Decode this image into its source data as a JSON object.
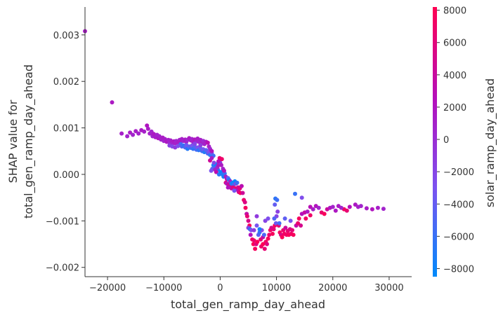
{
  "chart_data": {
    "type": "scatter",
    "xlabel": "total_gen_ramp_day_ahead",
    "ylabel_line1": "SHAP value for",
    "ylabel_line2": "total_gen_ramp_day_ahead",
    "colorbar_label": "solar_ramp_day_ahead",
    "xlim": [
      -24000,
      34000
    ],
    "ylim": [
      -0.0022,
      0.0036
    ],
    "color_range": [
      -8500,
      8200
    ],
    "x_ticks": [
      -20000,
      -10000,
      0,
      10000,
      20000,
      30000
    ],
    "x_tick_labels": [
      "−20000",
      "−10000",
      "0",
      "10000",
      "20000",
      "30000"
    ],
    "y_ticks": [
      0.003,
      0.002,
      0.001,
      0.0,
      -0.001,
      -0.002
    ],
    "y_tick_labels": [
      "0.003",
      "0.002",
      "0.001",
      "0.000",
      "−0.001",
      "−0.002"
    ],
    "colorbar_ticks": [
      8000,
      6000,
      4000,
      2000,
      0,
      -2000,
      -4000,
      -6000,
      -8000
    ],
    "colorbar_tick_labels": [
      "8000",
      "6000",
      "4000",
      "2000",
      "0",
      "−2000",
      "−4000",
      "−6000",
      "−8000"
    ],
    "colormap": [
      "#008afb",
      "#7c52f0",
      "#b40fbb",
      "#ff0052"
    ],
    "points": [
      [
        -24000,
        0.00308,
        1500
      ],
      [
        -19200,
        0.00155,
        1800
      ],
      [
        -17500,
        0.00088,
        1200
      ],
      [
        -16500,
        0.00082,
        900
      ],
      [
        -16000,
        0.0009,
        1500
      ],
      [
        -15500,
        0.00085,
        800
      ],
      [
        -15000,
        0.00093,
        1400
      ],
      [
        -14500,
        0.00088,
        1100
      ],
      [
        -14000,
        0.00095,
        1600
      ],
      [
        -13500,
        0.00092,
        1300
      ],
      [
        -13000,
        0.00105,
        2200
      ],
      [
        -12800,
        0.00098,
        1500
      ],
      [
        -12500,
        0.00088,
        1200
      ],
      [
        -12200,
        0.00092,
        900
      ],
      [
        -12000,
        0.00082,
        600
      ],
      [
        -11800,
        0.00087,
        1800
      ],
      [
        -11500,
        0.0008,
        1400
      ],
      [
        -11200,
        0.00085,
        800
      ],
      [
        -11000,
        0.00078,
        2000
      ],
      [
        -10800,
        0.00082,
        1200
      ],
      [
        -10500,
        0.00075,
        1000
      ],
      [
        -10200,
        0.00079,
        1500
      ],
      [
        -10000,
        0.00072,
        700
      ],
      [
        -9800,
        0.00076,
        1300
      ],
      [
        -9500,
        0.0007,
        1900
      ],
      [
        -9200,
        0.00074,
        1100
      ],
      [
        -9000,
        0.00068,
        500
      ],
      [
        -8800,
        0.00073,
        1400
      ],
      [
        -8500,
        0.00066,
        900
      ],
      [
        -8200,
        0.00071,
        1700
      ],
      [
        -8000,
        0.00067,
        1200
      ],
      [
        -7800,
        0.00072,
        600
      ],
      [
        -7500,
        0.00069,
        1500
      ],
      [
        -7200,
        0.00074,
        1000
      ],
      [
        -7000,
        0.0007,
        1800
      ],
      [
        -6800,
        0.00076,
        1300
      ],
      [
        -6500,
        0.00072,
        800
      ],
      [
        -6200,
        0.00075,
        1600
      ],
      [
        -6000,
        0.0007,
        1100
      ],
      [
        -5800,
        0.00074,
        400
      ],
      [
        -5500,
        0.00078,
        1700
      ],
      [
        -5200,
        0.00073,
        1200
      ],
      [
        -5000,
        0.00076,
        900
      ],
      [
        -4800,
        0.0007,
        1400
      ],
      [
        -4500,
        0.00075,
        2100
      ],
      [
        -4200,
        0.00072,
        1000
      ],
      [
        -4000,
        0.00077,
        1500
      ],
      [
        -3800,
        0.0007,
        700
      ],
      [
        -3500,
        0.00074,
        1300
      ],
      [
        -3200,
        0.00068,
        1800
      ],
      [
        -3000,
        0.00072,
        500
      ],
      [
        -2800,
        0.00065,
        1100
      ],
      [
        -2500,
        0.0007,
        1600
      ],
      [
        -7000,
        0.00065,
        -5500
      ],
      [
        -6800,
        0.0006,
        -4800
      ],
      [
        -6500,
        0.00062,
        -6200
      ],
      [
        -6200,
        0.00058,
        -5000
      ],
      [
        -6000,
        0.00063,
        -3500
      ],
      [
        -5800,
        0.00055,
        -6800
      ],
      [
        -5500,
        0.0006,
        -4200
      ],
      [
        -5200,
        0.00057,
        -5600
      ],
      [
        -5000,
        0.00062,
        -3000
      ],
      [
        -4800,
        0.00055,
        -6100
      ],
      [
        -4500,
        0.0006,
        -4600
      ],
      [
        -4200,
        0.00053,
        -5300
      ],
      [
        -4000,
        0.00058,
        -2800
      ],
      [
        -3800,
        0.00052,
        -6500
      ],
      [
        -3500,
        0.00056,
        -4000
      ],
      [
        -3200,
        0.0005,
        -5700
      ],
      [
        -3000,
        0.00054,
        -3300
      ],
      [
        -2800,
        0.00048,
        -6900
      ],
      [
        -2500,
        0.00052,
        -4400
      ],
      [
        -2200,
        0.00045,
        -5100
      ],
      [
        -2000,
        0.00048,
        -2600
      ],
      [
        -1800,
        0.00042,
        -6300
      ],
      [
        -1500,
        0.00046,
        -3800
      ],
      [
        -1200,
        0.0004,
        -5500
      ],
      [
        -9000,
        0.00062,
        -1500
      ],
      [
        -8500,
        0.0006,
        -2200
      ],
      [
        -8000,
        0.00058,
        -1000
      ],
      [
        -7500,
        0.00061,
        -2500
      ],
      [
        -4500,
        0.00066,
        -1800
      ],
      [
        -3500,
        0.00063,
        -900
      ],
      [
        -2000,
        0.0006,
        1200
      ],
      [
        -1800,
        0.00055,
        600
      ],
      [
        -1500,
        0.0005,
        2400
      ],
      [
        -2200,
        0.00068,
        3000
      ],
      [
        -1800,
        0.0003,
        4500
      ],
      [
        -1500,
        0.00035,
        1500
      ],
      [
        -1200,
        0.0002,
        -7500
      ],
      [
        -1000,
        0.00018,
        -6000
      ],
      [
        -800,
        0.00022,
        -7800
      ],
      [
        -600,
        0.00015,
        -5200
      ],
      [
        -400,
        0.0001,
        -7000
      ],
      [
        -1400,
        0.00012,
        -4500
      ],
      [
        -1100,
        0.00025,
        -2000
      ],
      [
        -900,
        0.0001,
        1000
      ],
      [
        -700,
        5e-05,
        3200
      ],
      [
        -500,
        0.00015,
        800
      ],
      [
        -300,
        0.0002,
        2000
      ],
      [
        -100,
        0.0003,
        5200
      ],
      [
        0,
        0.00025,
        -1200
      ],
      [
        200,
        0.0002,
        1800
      ],
      [
        -200,
        0.0,
        -6500
      ],
      [
        -1600,
        8e-05,
        -3000
      ],
      [
        -100,
        0.00035,
        6500
      ],
      [
        300,
        0.00033,
        7000
      ],
      [
        100,
        5e-05,
        -8000
      ],
      [
        400,
        0.0,
        -6800
      ],
      [
        600,
        -5e-05,
        -7500
      ],
      [
        800,
        2e-05,
        -5900
      ],
      [
        -300,
        0.00028,
        2600
      ],
      [
        500,
        0.00012,
        900
      ],
      [
        700,
        8e-05,
        2300
      ],
      [
        1000,
        -5e-05,
        1500
      ],
      [
        1200,
        -0.0001,
        3500
      ],
      [
        1400,
        -8e-05,
        -4200
      ],
      [
        1600,
        -0.00012,
        -7200
      ],
      [
        1800,
        -0.00015,
        900
      ],
      [
        1000,
        -0.00018,
        5400
      ],
      [
        1200,
        -0.0002,
        2100
      ],
      [
        1500,
        -0.00022,
        4200
      ],
      [
        1800,
        -0.00025,
        6100
      ],
      [
        2000,
        -0.0002,
        -6500
      ],
      [
        2200,
        -0.00018,
        -7800
      ],
      [
        2400,
        -0.00022,
        -5500
      ],
      [
        2600,
        -0.00015,
        -8200
      ],
      [
        2000,
        -0.0003,
        3600
      ],
      [
        2300,
        -0.00028,
        5800
      ],
      [
        2600,
        -0.00032,
        1700
      ],
      [
        2800,
        -0.0003,
        7200
      ],
      [
        3000,
        -0.00033,
        2900
      ],
      [
        3200,
        -0.00028,
        4800
      ],
      [
        2500,
        -0.00035,
        -3200
      ],
      [
        2800,
        -0.0002,
        -1500
      ],
      [
        3500,
        -0.0003,
        6200
      ],
      [
        3800,
        -0.00025,
        3100
      ],
      [
        3300,
        -0.00038,
        5000
      ],
      [
        3000,
        -0.00018,
        -6000
      ],
      [
        1400,
        -0.00028,
        2400
      ],
      [
        3600,
        -0.0004,
        7800
      ],
      [
        4000,
        -0.0004,
        4500
      ],
      [
        4200,
        -0.00055,
        6800
      ],
      [
        4400,
        -0.0006,
        5600
      ],
      [
        4500,
        -0.00072,
        7500
      ],
      [
        4700,
        -0.00085,
        3800
      ],
      [
        4800,
        -0.0009,
        6500
      ],
      [
        5000,
        -0.001,
        5200
      ],
      [
        5200,
        -0.0011,
        7800
      ],
      [
        5000,
        -0.00115,
        -1500
      ],
      [
        5300,
        -0.00118,
        -6800
      ],
      [
        5500,
        -0.0012,
        -2500
      ],
      [
        5700,
        -0.0014,
        7200
      ],
      [
        5900,
        -0.0015,
        8000
      ],
      [
        5400,
        -0.0013,
        2400
      ],
      [
        6000,
        -0.00142,
        6800
      ],
      [
        6200,
        -0.0016,
        7600
      ],
      [
        6400,
        -0.0015,
        5500
      ],
      [
        6600,
        -0.00145,
        7900
      ],
      [
        6800,
        -0.0013,
        -4500
      ],
      [
        7000,
        -0.00125,
        -6000
      ],
      [
        7200,
        -0.0014,
        6500
      ],
      [
        7400,
        -0.0012,
        -2200
      ],
      [
        7600,
        -0.00135,
        3900
      ],
      [
        7800,
        -0.0013,
        -5000
      ],
      [
        6000,
        -0.0012,
        -1000
      ],
      [
        6500,
        -0.0011,
        -3000
      ],
      [
        7000,
        -0.00118,
        -7600
      ],
      [
        7300,
        -0.00155,
        7000
      ],
      [
        7600,
        -0.0015,
        8000
      ],
      [
        7900,
        -0.0016,
        6400
      ],
      [
        8100,
        -0.00145,
        7400
      ],
      [
        8300,
        -0.0015,
        5800
      ],
      [
        8500,
        -0.00138,
        7800
      ],
      [
        8700,
        -0.0013,
        6900
      ],
      [
        8900,
        -0.0012,
        7300
      ],
      [
        9100,
        -0.00115,
        5100
      ],
      [
        9300,
        -0.00128,
        7700
      ],
      [
        9500,
        -0.00118,
        6200
      ],
      [
        9700,
        -0.0011,
        7500
      ],
      [
        9900,
        -0.00105,
        -3500
      ],
      [
        10000,
        -0.0009,
        -2000
      ],
      [
        9600,
        -0.00095,
        -4800
      ],
      [
        9800,
        -0.00052,
        -6500
      ],
      [
        10100,
        -0.00055,
        -5800
      ],
      [
        9700,
        -0.00065,
        -4000
      ],
      [
        10200,
        -0.0008,
        -1500
      ],
      [
        10400,
        -0.0011,
        6400
      ],
      [
        10600,
        -0.00125,
        7600
      ],
      [
        10800,
        -0.0013,
        5600
      ],
      [
        11000,
        -0.00135,
        7900
      ],
      [
        11200,
        -0.0012,
        6800
      ],
      [
        11400,
        -0.00128,
        7400
      ],
      [
        11600,
        -0.00115,
        4200
      ],
      [
        11800,
        -0.0013,
        7100
      ],
      [
        12000,
        -0.00122,
        6600
      ],
      [
        12200,
        -0.0013,
        7800
      ],
      [
        12400,
        -0.00118,
        5500
      ],
      [
        12600,
        -0.00128,
        7300
      ],
      [
        12800,
        -0.0012,
        6300
      ],
      [
        13000,
        -0.0013,
        7700
      ],
      [
        13300,
        -0.00042,
        -6000
      ],
      [
        13500,
        -0.0011,
        3500
      ],
      [
        13800,
        -0.00105,
        6800
      ],
      [
        14000,
        -0.00095,
        7500
      ],
      [
        14300,
        -0.0011,
        5100
      ],
      [
        14500,
        -0.00085,
        2600
      ],
      [
        15000,
        -0.00082,
        3800
      ],
      [
        15200,
        -0.00095,
        7200
      ],
      [
        15500,
        -0.0008,
        1800
      ],
      [
        16000,
        -0.0007,
        2900
      ],
      [
        16500,
        -0.00075,
        1300
      ],
      [
        17000,
        -0.00068,
        2400
      ],
      [
        17500,
        -0.00072,
        800
      ],
      [
        18000,
        -0.00082,
        6600
      ],
      [
        18500,
        -0.00085,
        7800
      ],
      [
        19000,
        -0.00075,
        4300
      ],
      [
        19500,
        -0.00072,
        2100
      ],
      [
        20000,
        -0.0007,
        1000
      ],
      [
        21000,
        -0.00068,
        1600
      ],
      [
        22000,
        -0.00075,
        7400
      ],
      [
        22500,
        -0.00078,
        6500
      ],
      [
        23000,
        -0.0007,
        2600
      ],
      [
        24000,
        -0.00065,
        1800
      ],
      [
        24500,
        -0.0007,
        1200
      ],
      [
        25000,
        -0.00068,
        800
      ],
      [
        26000,
        -0.00073,
        1500
      ],
      [
        27000,
        -0.00075,
        2200
      ],
      [
        28000,
        -0.00072,
        1300
      ],
      [
        29000,
        -0.00074,
        900
      ],
      [
        14500,
        -0.0005,
        -2500
      ],
      [
        11500,
        -0.00095,
        -4200
      ],
      [
        12500,
        -0.001,
        -3100
      ],
      [
        10500,
        -0.00105,
        -5400
      ],
      [
        8000,
        -0.001,
        -1800
      ],
      [
        8500,
        -0.00095,
        -2600
      ],
      [
        6500,
        -0.0009,
        -900
      ],
      [
        20500,
        -0.00078,
        1900
      ],
      [
        21500,
        -0.00072,
        1100
      ],
      [
        16000,
        -0.00088,
        7000
      ]
    ]
  }
}
